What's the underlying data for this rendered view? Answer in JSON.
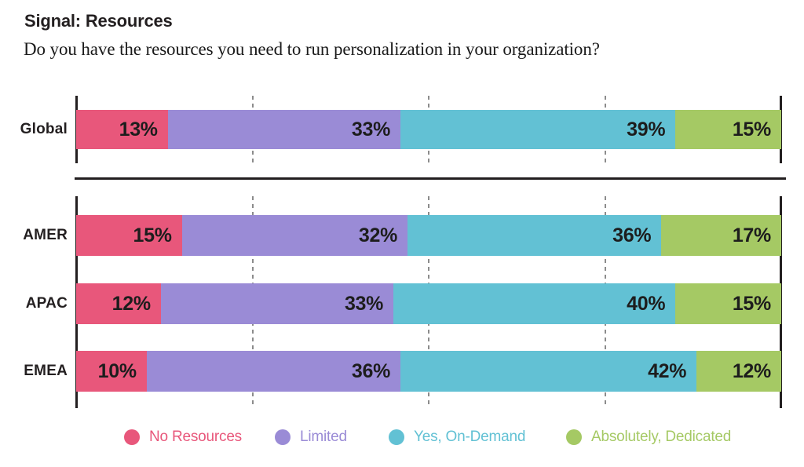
{
  "header": {
    "title": "Signal: Resources",
    "subtitle": "Do you have the resources you need to run personalization in your organization?"
  },
  "chart_data": {
    "type": "bar",
    "variant": "horizontal-stacked",
    "title": "Signal: Resources",
    "question": "Do you have the resources you need to run personalization in your organization?",
    "categories": [
      "Global",
      "AMER",
      "APAC",
      "EMEA"
    ],
    "category_groups": [
      [
        "Global"
      ],
      [
        "AMER",
        "APAC",
        "EMEA"
      ]
    ],
    "series": [
      {
        "name": "No Resources",
        "color": "#E8577B",
        "values": [
          13,
          15,
          12,
          10
        ]
      },
      {
        "name": "Limited",
        "color": "#9A8BD6",
        "values": [
          33,
          32,
          33,
          36
        ]
      },
      {
        "name": "Yes, On-Demand",
        "color": "#62C1D4",
        "values": [
          39,
          36,
          40,
          42
        ]
      },
      {
        "name": "Absolutely, Dedicated",
        "color": "#A5C964",
        "values": [
          15,
          17,
          15,
          12
        ]
      }
    ],
    "value_suffix": "%",
    "xlim": [
      0,
      100
    ],
    "gridlines_percent": [
      25,
      50,
      75
    ],
    "grid_style": "dashed",
    "legend_position": "bottom"
  },
  "legend": {
    "items": [
      {
        "label": "No Resources",
        "color": "#E8577B"
      },
      {
        "label": "Limited",
        "color": "#9A8BD6"
      },
      {
        "label": "Yes, On-Demand",
        "color": "#62C1D4"
      },
      {
        "label": "Absolutely, Dedicated",
        "color": "#A5C964"
      }
    ]
  },
  "colors": {
    "axis": "#231F20",
    "gridline": "#8C8C8C",
    "text": "#231F20",
    "value_label": "#1D1D1D",
    "background": "#FFFFFF"
  }
}
